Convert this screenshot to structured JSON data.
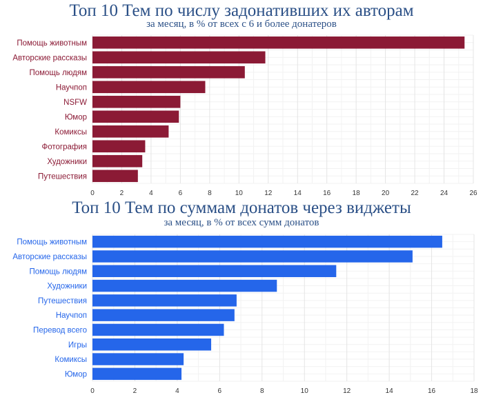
{
  "chart_data": [
    {
      "type": "bar",
      "orientation": "horizontal",
      "title": "Топ 10 Тем по числу задонативших их авторам",
      "subtitle": "за месяц, в % от всех с 6 и более донатеров",
      "categories": [
        "Помощь животным",
        "Авторские рассказы",
        "Помощь людям",
        "Научпоп",
        "NSFW",
        "Юмор",
        "Комиксы",
        "Фотография",
        "Художники",
        "Путешествия"
      ],
      "values": [
        25.4,
        11.8,
        10.4,
        7.7,
        6.0,
        5.9,
        5.2,
        3.6,
        3.4,
        3.1
      ],
      "xlim": [
        0,
        26
      ],
      "ticks": [
        0,
        2,
        4,
        6,
        8,
        10,
        12,
        14,
        16,
        18,
        20,
        22,
        24,
        26
      ],
      "grid": true,
      "bar_color": "#8b1a35",
      "label_color": "#8b1a35"
    },
    {
      "type": "bar",
      "orientation": "horizontal",
      "title": "Топ 10 Тем по суммам донатов через виджеты",
      "subtitle": "за месяц, в % от всех сумм донатов",
      "categories": [
        "Помощь животным",
        "Авторские рассказы",
        "Помощь людям",
        "Художники",
        "Путешествия",
        "Научпоп",
        "Перевод всего",
        "Игры",
        "Комиксы",
        "Юмор"
      ],
      "values": [
        16.5,
        15.1,
        11.5,
        8.7,
        6.8,
        6.7,
        6.2,
        5.6,
        4.3,
        4.2
      ],
      "xlim": [
        0,
        18
      ],
      "ticks": [
        0,
        2,
        4,
        6,
        8,
        10,
        12,
        14,
        16,
        18
      ],
      "grid": true,
      "bar_color": "#2566ea",
      "label_color": "#2566ea"
    }
  ]
}
